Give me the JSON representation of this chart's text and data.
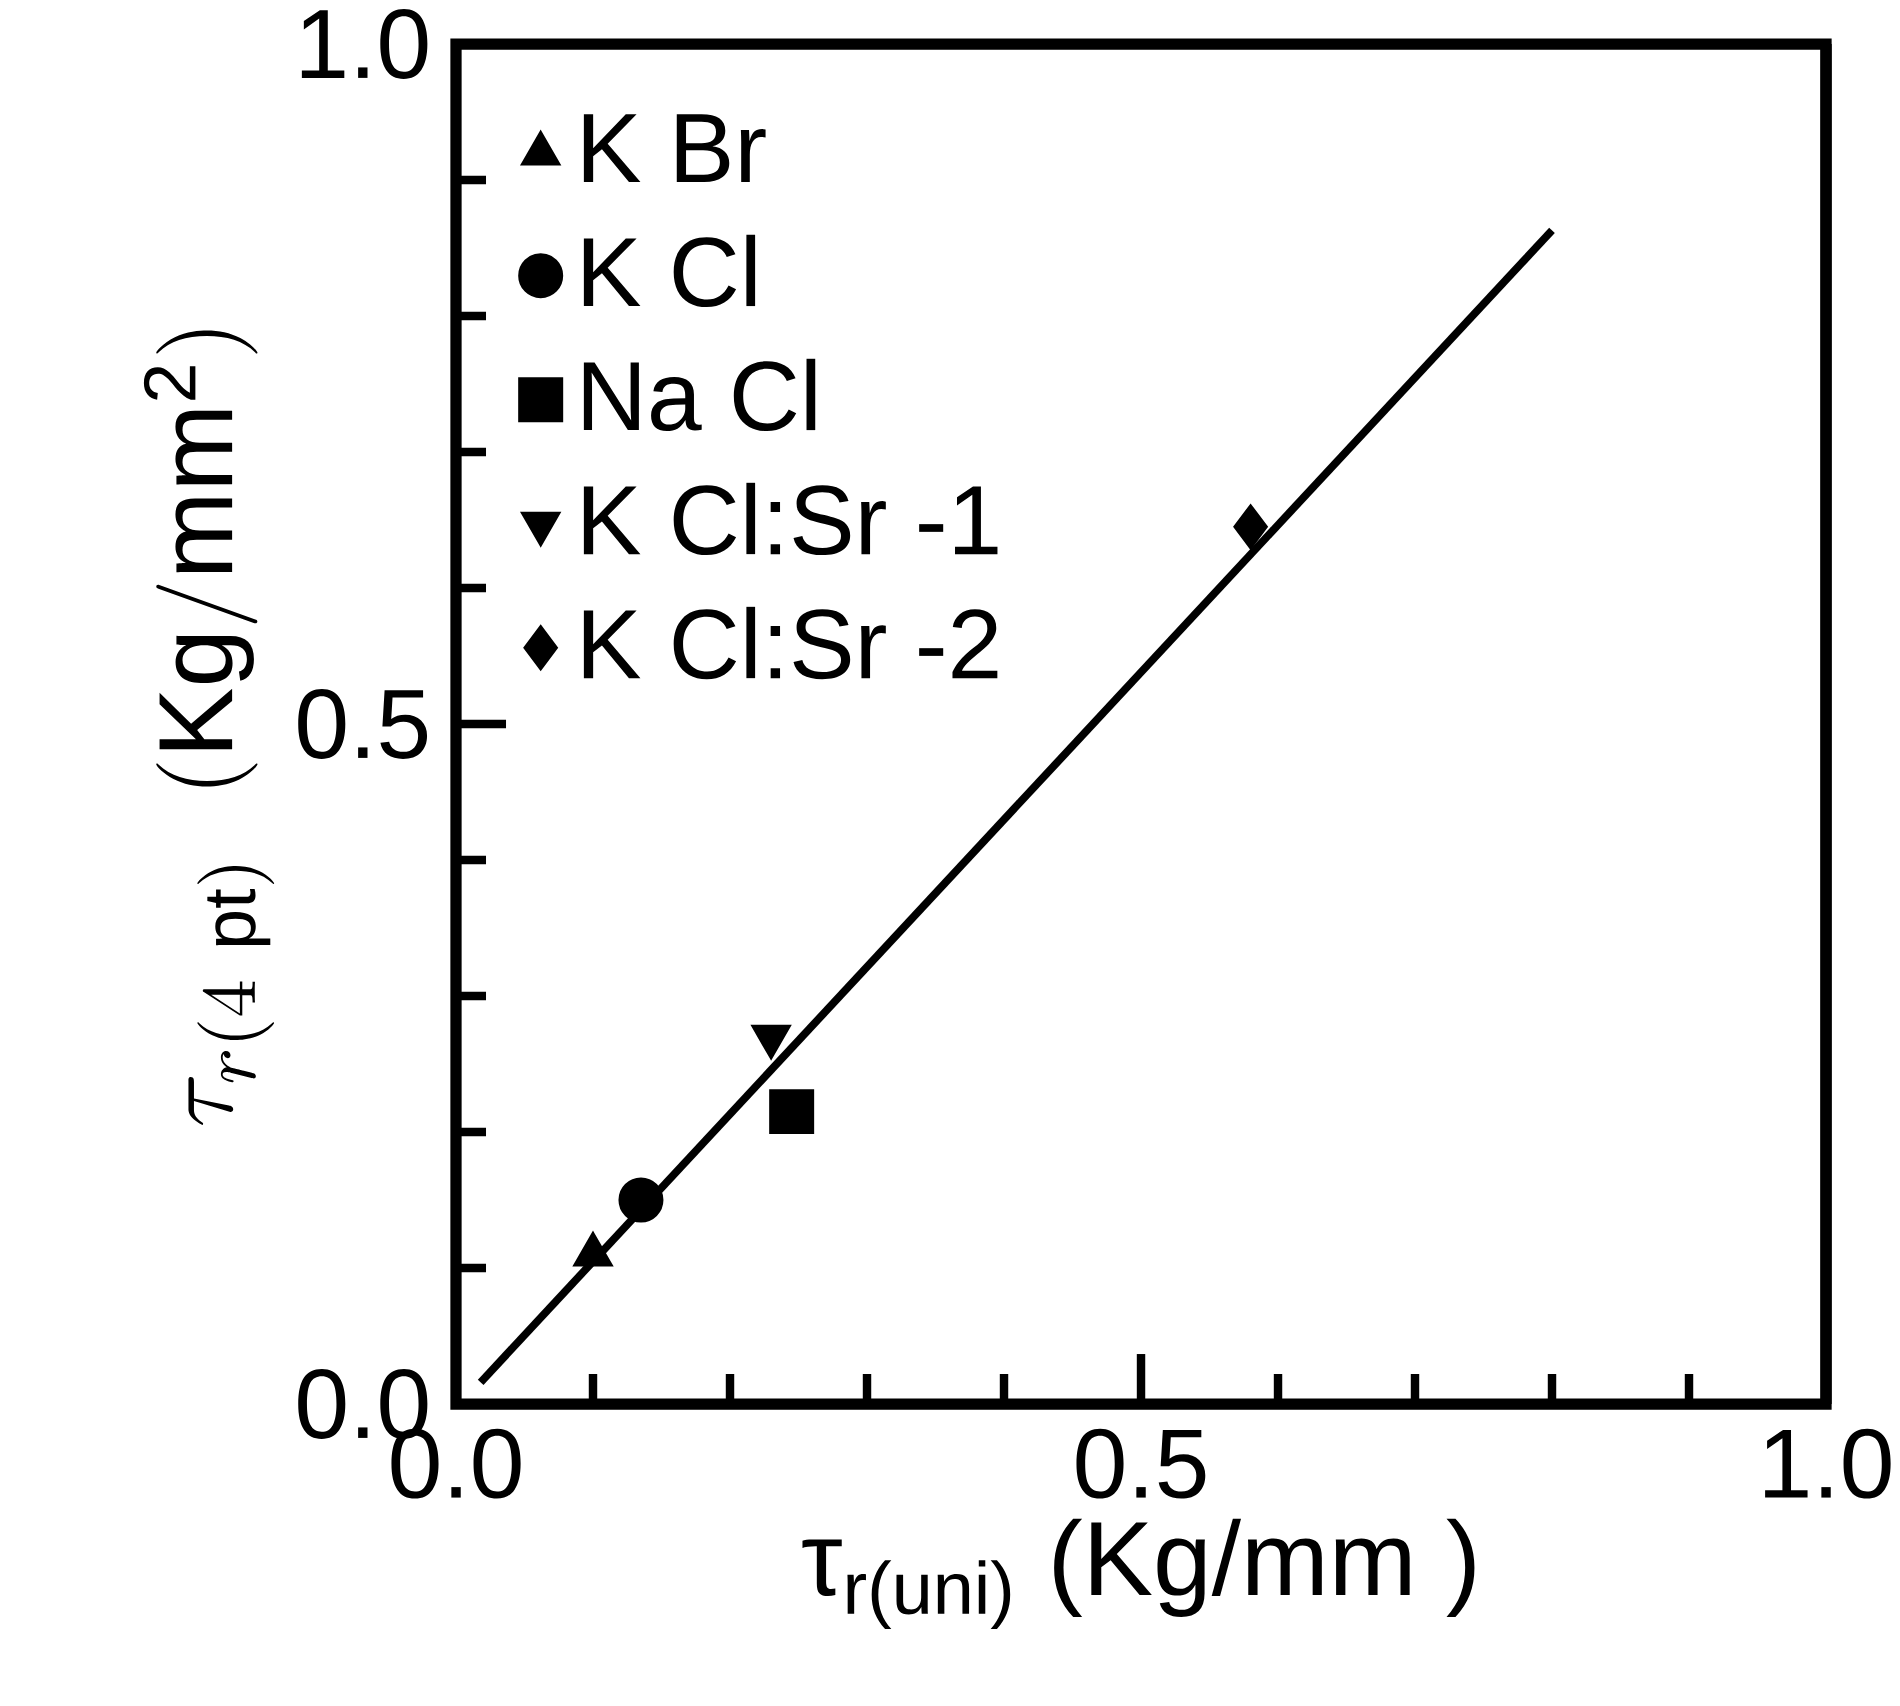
{
  "chart_data": {
    "type": "scatter",
    "xlabel": "τ$_{r(uni)}$ (Kg/mm )",
    "ylabel": "\\tau_{r(4\\ \\mathrm{pt})}\\ \\ (\\mathrm{Kg/mm^{2}})",
    "xlim": [
      0,
      1
    ],
    "ylim": [
      0,
      1
    ],
    "xticks": [
      {
        "value": 0,
        "label": "0.0"
      },
      {
        "value": 0.5,
        "label": "0.5"
      },
      {
        "value": 1,
        "label": "1.0"
      }
    ],
    "yticks": [
      {
        "value": 0,
        "label": "0.0"
      },
      {
        "value": 0.5,
        "label": "0.5"
      },
      {
        "value": 1,
        "label": "1.0"
      }
    ],
    "grid": false,
    "legend": "top left",
    "series": [
      {
        "name": "K Br",
        "color": "#000000",
        "marker": "triangle",
        "x": [
          0.1
        ],
        "values": [
          0.11
        ]
      },
      {
        "name": "K Cl",
        "color": "#000000",
        "marker": "circle",
        "x": [
          0.135
        ],
        "values": [
          0.15
        ]
      },
      {
        "name": "Na Cl",
        "color": "#000000",
        "marker": "square",
        "x": [
          0.245
        ],
        "values": [
          0.215
        ]
      },
      {
        "name": "K Cl:Sr -1",
        "color": "#000000",
        "marker": "triangle-down",
        "x": [
          0.23
        ],
        "values": [
          0.27
        ]
      },
      {
        "name": "K Cl:Sr -2",
        "color": "#000000",
        "marker": "diamond",
        "x": [
          0.58
        ],
        "values": [
          0.645
        ]
      },
      {
        "type": "line",
        "color": "#000000",
        "marker": "none",
        "line_style": "solid",
        "x": [
          0.018,
          0.8
        ],
        "values": [
          0.016,
          0.863
        ]
      }
    ]
  }
}
